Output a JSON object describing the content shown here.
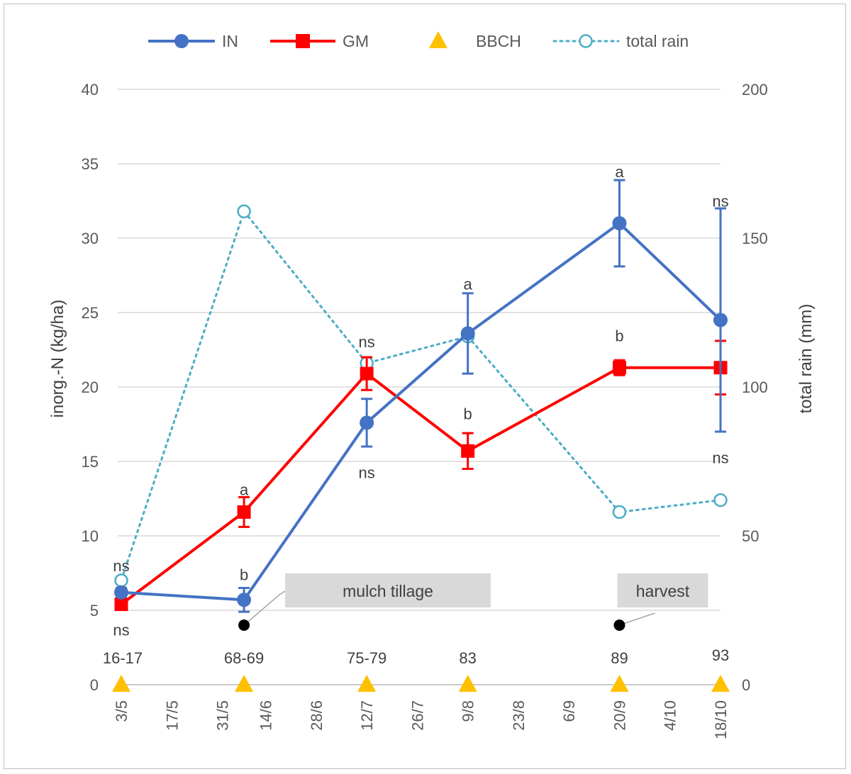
{
  "chart_data": {
    "type": "line",
    "xlabel": "",
    "ylabel": "inorg.-N (kg/ha)",
    "y2label": "total rain (mm)",
    "ylim": [
      0,
      40
    ],
    "y2lim": [
      0,
      200
    ],
    "yticks": [
      "0",
      "5",
      "10",
      "15",
      "20",
      "25",
      "30",
      "35",
      "40"
    ],
    "y2ticks": [
      "0",
      "50",
      "100",
      "150",
      "200"
    ],
    "xticks": [
      "3/5",
      "17/5",
      "31/5",
      "14/6",
      "28/6",
      "12/7",
      "26/7",
      "9/8",
      "23/8",
      "6/9",
      "20/9",
      "4/10",
      "18/10"
    ],
    "grid": true,
    "legend_position": "top",
    "legend": [
      "IN",
      "GM",
      "BBCH",
      "total rain"
    ],
    "colors": {
      "IN": "#4472c4",
      "GM": "#ff0000",
      "BBCH": "#ffc000",
      "rain": "#4bacc6"
    },
    "x": [
      "3/5",
      "8/6",
      "12/7",
      "9/8",
      "20/9",
      "18/10"
    ],
    "series": [
      {
        "name": "IN",
        "axis": "left",
        "values": [
          6.2,
          5.7,
          17.6,
          23.6,
          31.0,
          24.5
        ],
        "errors": [
          0.3,
          0.8,
          1.6,
          2.7,
          2.9,
          7.5
        ]
      },
      {
        "name": "GM",
        "axis": "left",
        "values": [
          5.4,
          11.6,
          20.9,
          15.7,
          21.3,
          21.3
        ],
        "errors": [
          0.2,
          1.0,
          1.1,
          1.2,
          0.5,
          1.8
        ]
      },
      {
        "name": "total rain",
        "axis": "right",
        "values": [
          35,
          159,
          108,
          117,
          58,
          62
        ]
      }
    ],
    "bbch": {
      "name": "BBCH",
      "labels": [
        "16-17",
        "68-69",
        "75-79",
        "83",
        "89",
        "93"
      ],
      "value": 0
    },
    "significance": {
      "IN": [
        "ns",
        "b",
        "ns",
        "a",
        "a",
        "ns"
      ],
      "GM": [
        "ns",
        "a",
        "ns",
        "b",
        "b",
        "ns"
      ]
    },
    "annotations": [
      {
        "text": "mulch tillage",
        "x": "8/6"
      },
      {
        "text": "harvest",
        "x": "20/9"
      }
    ]
  }
}
